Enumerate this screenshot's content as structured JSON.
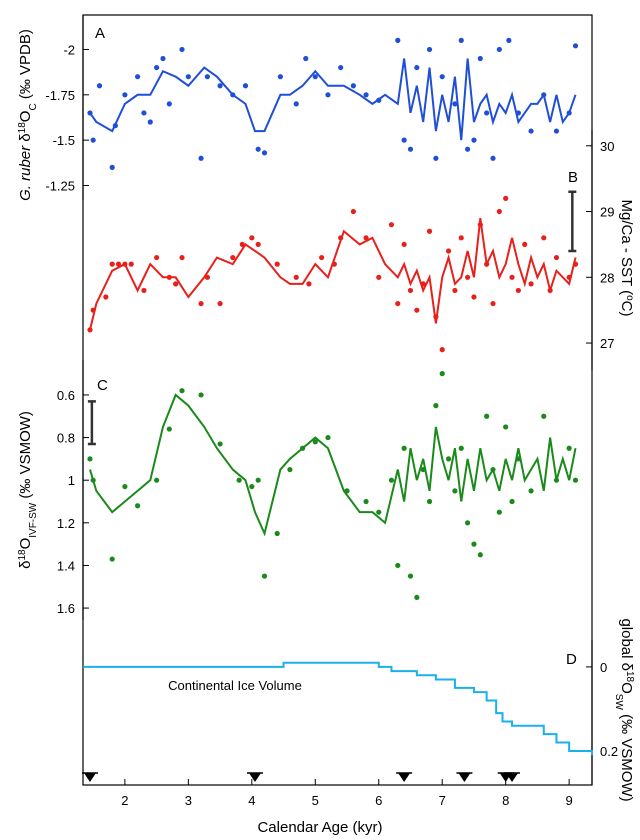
{
  "x_axis": {
    "label": "Calendar Age (kyr)",
    "xlim": [
      1.34,
      9.36
    ],
    "xticks": [
      2,
      3,
      4,
      5,
      6,
      7,
      8,
      9
    ]
  },
  "age_controls": [
    1.45,
    4.05,
    6.4,
    7.35,
    8.0,
    8.1
  ],
  "chart_data": [
    {
      "type": "line",
      "label": "A",
      "ylabel": [
        "G. ruber",
        " δ",
        "18",
        "O",
        "C",
        " (‰ VPDB)"
      ],
      "ylim": [
        -1.17,
        -2.19
      ],
      "yticks": [
        -2,
        -1.75,
        -1.5,
        -1.25
      ],
      "x": [
        1.45,
        1.55,
        1.8,
        2.0,
        2.2,
        2.4,
        2.6,
        2.8,
        3.0,
        3.25,
        3.45,
        3.7,
        3.9,
        4.05,
        4.2,
        4.45,
        4.6,
        4.8,
        5.0,
        5.2,
        5.45,
        5.7,
        5.9,
        6.1,
        6.3,
        6.4,
        6.5,
        6.6,
        6.7,
        6.8,
        6.9,
        7.0,
        7.1,
        7.2,
        7.3,
        7.4,
        7.5,
        7.6,
        7.7,
        7.8,
        7.9,
        8.0,
        8.1,
        8.2,
        8.3,
        8.4,
        8.5,
        8.6,
        8.7,
        8.8,
        8.9,
        9.0,
        9.1
      ],
      "series": [
        {
          "color": "#1f4fd6",
          "values": [
            -1.65,
            -1.6,
            -1.55,
            -1.7,
            -1.75,
            -1.75,
            -1.88,
            -1.85,
            -1.8,
            -1.9,
            -1.85,
            -1.75,
            -1.7,
            -1.55,
            -1.55,
            -1.75,
            -1.75,
            -1.8,
            -1.88,
            -1.8,
            -1.8,
            -1.75,
            -1.7,
            -1.75,
            -1.7,
            -1.95,
            -1.65,
            -1.8,
            -1.6,
            -1.9,
            -1.55,
            -1.75,
            -1.6,
            -1.85,
            -1.5,
            -1.95,
            -1.6,
            -1.7,
            -1.75,
            -1.6,
            -1.7,
            -1.65,
            -1.75,
            -1.6,
            -1.65,
            -1.7,
            -1.7,
            -1.75,
            -1.6,
            -1.75,
            -1.6,
            -1.65,
            -1.75
          ]
        }
      ],
      "points": {
        "x": [
          1.45,
          1.5,
          1.6,
          1.8,
          1.85,
          2.0,
          2.2,
          2.3,
          2.4,
          2.5,
          2.6,
          2.7,
          2.9,
          3.0,
          3.2,
          3.3,
          3.5,
          3.7,
          3.9,
          4.1,
          4.2,
          4.45,
          4.7,
          4.85,
          5.0,
          5.2,
          5.4,
          5.6,
          5.8,
          6.0,
          6.3,
          6.4,
          6.5,
          6.6,
          6.8,
          6.9,
          7.0,
          7.2,
          7.3,
          7.4,
          7.5,
          7.6,
          7.7,
          7.8,
          7.9,
          8.05,
          8.2,
          8.4,
          8.6,
          8.8,
          9.0,
          9.1
        ],
        "values": [
          -1.65,
          -1.5,
          -1.8,
          -1.35,
          -1.58,
          -1.75,
          -1.85,
          -1.65,
          -1.6,
          -1.9,
          -1.95,
          -1.7,
          -2.0,
          -1.85,
          -1.4,
          -1.85,
          -1.8,
          -1.75,
          -1.8,
          -1.45,
          -1.43,
          -1.85,
          -1.7,
          -1.95,
          -1.85,
          -1.75,
          -1.9,
          -1.8,
          -1.75,
          -1.72,
          -2.05,
          -1.5,
          -1.45,
          -1.9,
          -2.0,
          -1.4,
          -1.85,
          -1.7,
          -2.05,
          -1.45,
          -1.5,
          -1.95,
          -1.65,
          -1.4,
          -2.0,
          -2.05,
          -1.65,
          -1.55,
          -1.75,
          -1.55,
          -1.65,
          -2.02
        ]
      }
    },
    {
      "type": "line",
      "label": "B",
      "ylabel": [
        "Mg/Ca - SST (",
        "o",
        "C)"
      ],
      "ylim": [
        26.59,
        30.24
      ],
      "yticks": [
        27,
        28,
        29,
        30
      ],
      "x": [
        1.45,
        1.55,
        1.8,
        2.0,
        2.2,
        2.4,
        2.6,
        2.8,
        3.0,
        3.25,
        3.45,
        3.7,
        3.9,
        4.05,
        4.2,
        4.45,
        4.6,
        4.8,
        5.0,
        5.2,
        5.45,
        5.7,
        5.9,
        6.1,
        6.3,
        6.4,
        6.5,
        6.6,
        6.7,
        6.8,
        6.9,
        7.0,
        7.1,
        7.2,
        7.3,
        7.4,
        7.5,
        7.6,
        7.7,
        7.8,
        7.9,
        8.0,
        8.1,
        8.2,
        8.3,
        8.4,
        8.5,
        8.6,
        8.7,
        8.8,
        8.9,
        9.0,
        9.1
      ],
      "series": [
        {
          "color": "#e8201c",
          "values": [
            27.2,
            27.6,
            28.1,
            28.2,
            27.8,
            28.2,
            28.0,
            28.0,
            27.7,
            28.0,
            28.3,
            28.2,
            28.5,
            28.4,
            28.3,
            28.0,
            27.9,
            27.9,
            28.2,
            28.0,
            28.7,
            28.5,
            28.6,
            28.2,
            28.0,
            28.2,
            27.9,
            28.1,
            27.8,
            28.0,
            27.3,
            28.0,
            28.3,
            27.9,
            28.0,
            28.4,
            28.0,
            28.9,
            28.2,
            28.4,
            28.0,
            28.2,
            28.6,
            28.2,
            27.9,
            28.3,
            28.0,
            28.2,
            27.8,
            28.1,
            28.0,
            27.9,
            28.3
          ]
        }
      ],
      "points": {
        "x": [
          1.45,
          1.5,
          1.7,
          1.8,
          1.9,
          2.0,
          2.1,
          2.3,
          2.5,
          2.7,
          2.8,
          2.9,
          3.2,
          3.3,
          3.5,
          3.7,
          3.85,
          4.0,
          4.1,
          4.4,
          4.7,
          4.9,
          5.1,
          5.3,
          5.4,
          5.6,
          5.8,
          6.0,
          6.2,
          6.3,
          6.4,
          6.5,
          6.6,
          6.7,
          6.8,
          6.9,
          7.0,
          7.1,
          7.2,
          7.3,
          7.4,
          7.5,
          7.6,
          7.7,
          7.8,
          7.9,
          8.0,
          8.1,
          8.2,
          8.3,
          8.4,
          8.6,
          8.7,
          8.8,
          9.0,
          9.1
        ],
        "values": [
          27.2,
          27.5,
          27.7,
          28.2,
          28.2,
          28.2,
          28.2,
          27.8,
          28.3,
          28.0,
          27.9,
          28.3,
          27.6,
          28.0,
          27.6,
          28.3,
          28.5,
          28.6,
          28.5,
          28.2,
          28.0,
          27.9,
          28.3,
          28.2,
          28.6,
          29.0,
          28.6,
          28.0,
          28.8,
          27.6,
          28.5,
          27.8,
          27.5,
          27.9,
          28.7,
          27.4,
          26.9,
          28.4,
          27.8,
          28.6,
          28.0,
          27.7,
          28.8,
          28.2,
          27.6,
          29.0,
          29.2,
          28.0,
          27.8,
          28.5,
          27.9,
          28.6,
          27.8,
          28.3,
          28.0,
          28.2
        ]
      },
      "error_bar": {
        "x": 9.05,
        "values": [
          28.4,
          29.3
        ]
      }
    },
    {
      "type": "line",
      "label": "C",
      "ylabel": [
        "δ",
        "18",
        "O",
        "IVF-SW",
        " (‰ VSMOW)"
      ],
      "ylim": [
        1.656,
        0.436
      ],
      "yticks": [
        0.6,
        0.8,
        1,
        1.2,
        1.4,
        1.6
      ],
      "x": [
        1.45,
        1.55,
        1.8,
        2.0,
        2.2,
        2.4,
        2.6,
        2.8,
        3.0,
        3.25,
        3.45,
        3.7,
        3.9,
        4.05,
        4.2,
        4.45,
        4.6,
        4.8,
        5.0,
        5.2,
        5.45,
        5.7,
        5.9,
        6.1,
        6.3,
        6.4,
        6.5,
        6.6,
        6.7,
        6.8,
        6.9,
        7.0,
        7.1,
        7.2,
        7.3,
        7.4,
        7.5,
        7.6,
        7.7,
        7.8,
        7.9,
        8.0,
        8.1,
        8.2,
        8.3,
        8.4,
        8.5,
        8.6,
        8.7,
        8.8,
        8.9,
        9.0,
        9.1
      ],
      "series": [
        {
          "color": "#1a8a1a",
          "values": [
            0.95,
            1.05,
            1.15,
            1.1,
            1.05,
            1.0,
            0.75,
            0.6,
            0.65,
            0.75,
            0.85,
            0.95,
            1.0,
            1.15,
            1.25,
            0.95,
            0.9,
            0.85,
            0.8,
            0.85,
            1.05,
            1.15,
            1.15,
            1.2,
            0.95,
            1.1,
            0.85,
            1.0,
            0.9,
            1.05,
            0.75,
            0.9,
            1.0,
            0.85,
            1.1,
            0.9,
            1.05,
            0.85,
            1.0,
            0.95,
            1.05,
            0.9,
            1.0,
            0.85,
            1.0,
            0.95,
            0.9,
            1.05,
            0.8,
            1.0,
            0.9,
            1.0,
            0.85
          ]
        }
      ],
      "points": {
        "x": [
          1.45,
          1.5,
          1.8,
          2.0,
          2.2,
          2.5,
          2.7,
          2.9,
          3.2,
          3.5,
          3.8,
          4.0,
          4.1,
          4.2,
          4.4,
          4.6,
          4.8,
          5.0,
          5.2,
          5.5,
          5.8,
          6.0,
          6.2,
          6.3,
          6.4,
          6.5,
          6.6,
          6.7,
          6.8,
          6.9,
          7.0,
          7.1,
          7.2,
          7.3,
          7.4,
          7.5,
          7.6,
          7.7,
          7.8,
          7.9,
          8.0,
          8.1,
          8.2,
          8.4,
          8.6,
          8.8,
          9.0,
          9.1
        ],
        "values": [
          0.9,
          1.0,
          1.37,
          1.03,
          1.12,
          1.0,
          0.76,
          0.58,
          0.6,
          0.83,
          1.0,
          1.03,
          1.0,
          1.45,
          1.25,
          0.95,
          0.85,
          0.82,
          0.8,
          1.05,
          1.1,
          1.15,
          1.0,
          1.4,
          0.85,
          1.45,
          1.55,
          0.95,
          1.1,
          0.65,
          0.5,
          0.9,
          1.05,
          0.85,
          1.2,
          1.3,
          1.35,
          0.7,
          0.95,
          1.15,
          0.75,
          1.1,
          0.9,
          1.05,
          0.7,
          1.0,
          0.85,
          1.0
        ]
      },
      "error_bar": {
        "x": 1.48,
        "values": [
          0.63,
          0.83
        ]
      }
    },
    {
      "type": "step",
      "label": "D",
      "ylabel": [
        "global δ",
        "18",
        "O",
        "SW",
        " (‰ VSMOW)"
      ],
      "annotation": "Continental Ice Volume",
      "ylim": [
        0.281,
        -0.064
      ],
      "yticks": [
        0,
        0.2
      ],
      "x": [
        1.34,
        4.5,
        6.0,
        6.2,
        6.6,
        6.9,
        7.2,
        7.5,
        7.7,
        7.85,
        7.95,
        8.1,
        8.6,
        8.8,
        9.0,
        9.36
      ],
      "series": [
        {
          "color": "#1ab0ea",
          "values": [
            0,
            -0.01,
            0,
            0.01,
            0.02,
            0.03,
            0.05,
            0.06,
            0.08,
            0.11,
            0.13,
            0.14,
            0.16,
            0.18,
            0.2,
            0.21
          ]
        }
      ]
    }
  ]
}
